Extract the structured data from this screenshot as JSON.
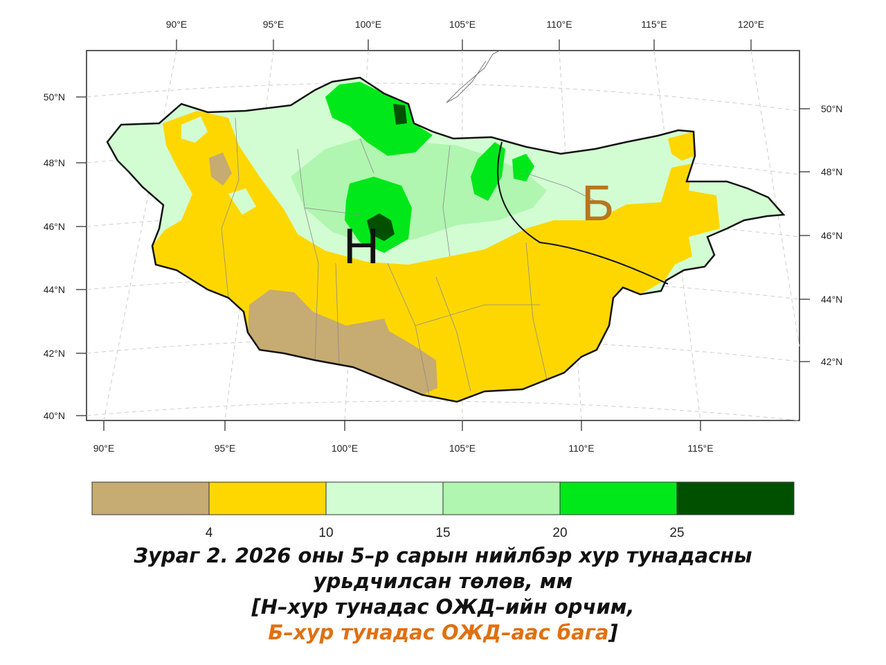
{
  "top_axis": {
    "labels": [
      "90°E",
      "95°E",
      "100°E",
      "105°E",
      "110°E",
      "115°E",
      "120°E"
    ]
  },
  "bottom_axis": {
    "labels": [
      "90°E",
      "95°E",
      "100°E",
      "105°E",
      "110°E",
      "115°E"
    ]
  },
  "left_axis": {
    "labels": [
      "50°N",
      "48°N",
      "46°N",
      "44°N",
      "42°N",
      "40°N"
    ]
  },
  "right_axis": {
    "labels": [
      "50°N",
      "48°N",
      "46°N",
      "44°N",
      "42°N"
    ]
  },
  "zones": {
    "near_normal_letter": "Н",
    "below_normal_letter": "Б"
  },
  "colorbar": {
    "bin_colors": [
      "#c6ab72",
      "#ffd700",
      "#d2fdd2",
      "#b0f5b0",
      "#00e81a",
      "#005000"
    ],
    "boundaries": [
      "4",
      "10",
      "15",
      "20",
      "25"
    ]
  },
  "colors": {
    "near_normal": "#111111",
    "below_normal": "#b8761c",
    "caption_accent": "#e07010"
  },
  "caption": {
    "line1": "Зураг 2. 2026 оны 5–р сарын нийлбэр хур тунадасны",
    "line2": "урьдчилсан төлөв, мм",
    "line3": "[Н–хур тунадас ОЖД–ийн орчим,",
    "line4_orange": "Б–хур тунадас ОЖД–аас бага",
    "line4_close": "]"
  }
}
